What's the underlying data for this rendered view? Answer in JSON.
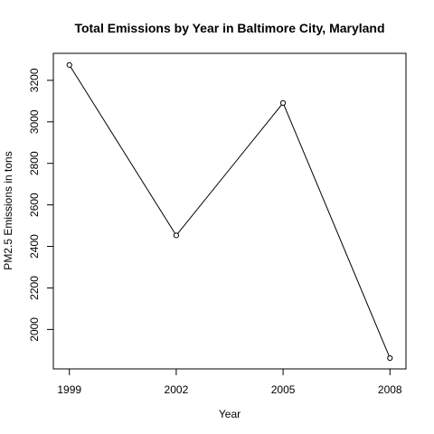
{
  "chart_data": {
    "type": "line",
    "title": "Total Emissions by Year in Baltimore City, Maryland",
    "xlabel": "Year",
    "ylabel": "PM2.5 Emissions in tons",
    "x": [
      1999,
      2002,
      2005,
      2008
    ],
    "x_ticks": [
      "1999",
      "2002",
      "2005",
      "2008"
    ],
    "values": [
      3274,
      2453,
      3091,
      1862
    ],
    "y_ticks": [
      "2000",
      "2200",
      "2400",
      "2600",
      "2800",
      "3000",
      "3200"
    ],
    "xlim": [
      1998.55,
      2008.45
    ],
    "ylim": [
      1810,
      3330
    ],
    "marker": "open-circle",
    "line_color": "#000000",
    "grid": false,
    "legend": false
  }
}
